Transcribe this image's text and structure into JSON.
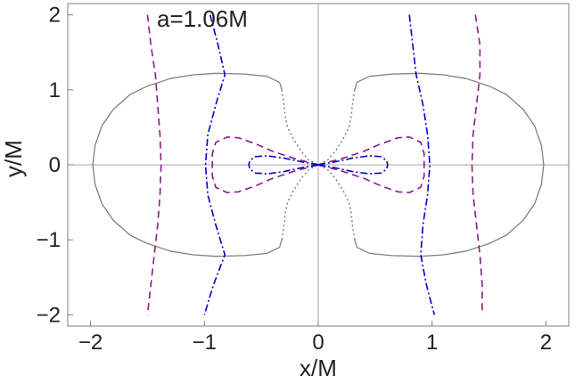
{
  "chart_data": {
    "type": "line",
    "title": "",
    "annotation": "a=1.06M",
    "xlabel": "x/M",
    "ylabel": "y/M",
    "xlim": [
      -2.2,
      2.2
    ],
    "ylim": [
      -2.15,
      2.15
    ],
    "xticks": [
      -2,
      -1,
      0,
      1,
      2
    ],
    "yticks": [
      -2,
      -1,
      0,
      1,
      2
    ],
    "xtick_labels": [
      "−2",
      "−1",
      "0",
      "1",
      "2"
    ],
    "ytick_labels": [
      "−2",
      "−1",
      "0",
      "1",
      "2"
    ],
    "origin_axes": true,
    "grid": false,
    "legend": "none",
    "series": [
      {
        "style": "solid",
        "color": "#808080",
        "points": [
          [
            0.32,
            1.0
          ],
          [
            0.34,
            1.1
          ],
          [
            0.45,
            1.18
          ],
          [
            0.65,
            1.21
          ],
          [
            0.9,
            1.22
          ],
          [
            1.1,
            1.2
          ],
          [
            1.3,
            1.15
          ],
          [
            1.5,
            1.05
          ],
          [
            1.65,
            0.94
          ],
          [
            1.8,
            0.74
          ],
          [
            1.9,
            0.52
          ],
          [
            1.96,
            0.26
          ],
          [
            1.98,
            0.0
          ],
          [
            1.96,
            -0.26
          ],
          [
            1.9,
            -0.52
          ],
          [
            1.8,
            -0.74
          ],
          [
            1.65,
            -0.94
          ],
          [
            1.5,
            -1.05
          ],
          [
            1.3,
            -1.15
          ],
          [
            1.1,
            -1.2
          ],
          [
            0.9,
            -1.22
          ],
          [
            0.65,
            -1.21
          ],
          [
            0.45,
            -1.18
          ],
          [
            0.34,
            -1.1
          ],
          [
            0.32,
            -1.0
          ]
        ]
      },
      {
        "style": "solid",
        "color": "#808080",
        "points": [
          [
            -0.32,
            1.0
          ],
          [
            -0.34,
            1.1
          ],
          [
            -0.45,
            1.18
          ],
          [
            -0.65,
            1.21
          ],
          [
            -0.9,
            1.22
          ],
          [
            -1.1,
            1.2
          ],
          [
            -1.3,
            1.15
          ],
          [
            -1.5,
            1.05
          ],
          [
            -1.65,
            0.94
          ],
          [
            -1.8,
            0.74
          ],
          [
            -1.9,
            0.52
          ],
          [
            -1.96,
            0.26
          ],
          [
            -1.98,
            0.0
          ],
          [
            -1.96,
            -0.26
          ],
          [
            -1.9,
            -0.52
          ],
          [
            -1.8,
            -0.74
          ],
          [
            -1.65,
            -0.94
          ],
          [
            -1.5,
            -1.05
          ],
          [
            -1.3,
            -1.15
          ],
          [
            -1.1,
            -1.2
          ],
          [
            -0.9,
            -1.22
          ],
          [
            -0.65,
            -1.21
          ],
          [
            -0.45,
            -1.18
          ],
          [
            -0.34,
            -1.1
          ],
          [
            -0.32,
            -1.0
          ]
        ]
      },
      {
        "style": "dotted",
        "color": "#808080",
        "points": [
          [
            0.32,
            1.0
          ],
          [
            0.3,
            0.8
          ],
          [
            0.29,
            0.65
          ],
          [
            0.27,
            0.5
          ],
          [
            0.22,
            0.35
          ],
          [
            0.15,
            0.18
          ],
          [
            0.08,
            0.06
          ],
          [
            0.0,
            0.0
          ],
          [
            -0.08,
            -0.06
          ],
          [
            -0.15,
            -0.18
          ],
          [
            -0.22,
            -0.35
          ],
          [
            -0.27,
            -0.5
          ],
          [
            -0.29,
            -0.65
          ],
          [
            -0.3,
            -0.8
          ],
          [
            -0.32,
            -1.0
          ]
        ]
      },
      {
        "style": "dotted",
        "color": "#808080",
        "points": [
          [
            -0.32,
            1.0
          ],
          [
            -0.3,
            0.8
          ],
          [
            -0.29,
            0.65
          ],
          [
            -0.27,
            0.5
          ],
          [
            -0.22,
            0.35
          ],
          [
            -0.15,
            0.18
          ],
          [
            -0.08,
            0.06
          ],
          [
            0.0,
            0.0
          ],
          [
            0.08,
            -0.06
          ],
          [
            0.15,
            -0.18
          ],
          [
            0.22,
            -0.35
          ],
          [
            0.27,
            -0.5
          ],
          [
            0.29,
            -0.65
          ],
          [
            0.3,
            -0.8
          ],
          [
            0.32,
            -1.0
          ]
        ]
      },
      {
        "style": "dashed",
        "color": "#8B1A8B",
        "points": [
          [
            1.38,
            2.0
          ],
          [
            1.42,
            1.6
          ],
          [
            1.42,
            1.2
          ],
          [
            1.39,
            0.8
          ],
          [
            1.36,
            0.4
          ],
          [
            1.35,
            0.0
          ],
          [
            1.36,
            -0.4
          ],
          [
            1.39,
            -0.8
          ],
          [
            1.42,
            -1.2
          ],
          [
            1.44,
            -1.6
          ],
          [
            1.44,
            -2.0
          ]
        ]
      },
      {
        "style": "dashed",
        "color": "#8B1A8B",
        "points": [
          [
            -1.5,
            2.0
          ],
          [
            -1.47,
            1.6
          ],
          [
            -1.43,
            1.2
          ],
          [
            -1.41,
            0.8
          ],
          [
            -1.39,
            0.4
          ],
          [
            -1.38,
            0.0
          ],
          [
            -1.39,
            -0.4
          ],
          [
            -1.41,
            -0.8
          ],
          [
            -1.44,
            -1.2
          ],
          [
            -1.47,
            -1.6
          ],
          [
            -1.5,
            -2.0
          ]
        ]
      },
      {
        "style": "dashed",
        "color": "#8B1A8B",
        "points": [
          [
            0.0,
            0.0
          ],
          [
            0.2,
            0.08
          ],
          [
            0.4,
            0.18
          ],
          [
            0.55,
            0.28
          ],
          [
            0.7,
            0.36
          ],
          [
            0.8,
            0.37
          ],
          [
            0.9,
            0.3
          ],
          [
            0.93,
            0.15
          ],
          [
            0.93,
            0.0
          ],
          [
            0.93,
            -0.15
          ],
          [
            0.9,
            -0.3
          ],
          [
            0.8,
            -0.37
          ],
          [
            0.7,
            -0.36
          ],
          [
            0.55,
            -0.28
          ],
          [
            0.4,
            -0.18
          ],
          [
            0.2,
            -0.08
          ],
          [
            0.0,
            0.0
          ]
        ]
      },
      {
        "style": "dashed",
        "color": "#8B1A8B",
        "points": [
          [
            0.0,
            0.0
          ],
          [
            -0.2,
            0.08
          ],
          [
            -0.4,
            0.18
          ],
          [
            -0.55,
            0.28
          ],
          [
            -0.7,
            0.36
          ],
          [
            -0.8,
            0.37
          ],
          [
            -0.9,
            0.3
          ],
          [
            -0.93,
            0.15
          ],
          [
            -0.93,
            0.0
          ],
          [
            -0.93,
            -0.15
          ],
          [
            -0.9,
            -0.3
          ],
          [
            -0.8,
            -0.37
          ],
          [
            -0.7,
            -0.36
          ],
          [
            -0.55,
            -0.28
          ],
          [
            -0.4,
            -0.18
          ],
          [
            -0.2,
            -0.08
          ],
          [
            0.0,
            0.0
          ]
        ]
      },
      {
        "style": "dashdot",
        "color": "#0000CC",
        "points": [
          [
            0.8,
            2.0
          ],
          [
            0.83,
            1.6
          ],
          [
            0.86,
            1.2
          ],
          [
            0.92,
            0.8
          ],
          [
            0.96,
            0.4
          ],
          [
            0.98,
            0.0
          ],
          [
            0.96,
            -0.4
          ],
          [
            0.92,
            -0.8
          ],
          [
            0.9,
            -1.2
          ],
          [
            0.95,
            -1.6
          ],
          [
            1.02,
            -2.0
          ]
        ]
      },
      {
        "style": "dashdot",
        "color": "#0000CC",
        "points": [
          [
            -0.95,
            2.0
          ],
          [
            -0.88,
            1.6
          ],
          [
            -0.82,
            1.2
          ],
          [
            -0.9,
            0.8
          ],
          [
            -0.97,
            0.4
          ],
          [
            -0.99,
            0.0
          ],
          [
            -0.97,
            -0.4
          ],
          [
            -0.9,
            -0.8
          ],
          [
            -0.82,
            -1.2
          ],
          [
            -0.92,
            -1.6
          ],
          [
            -1.0,
            -2.0
          ]
        ]
      },
      {
        "style": "dashdot",
        "color": "#0000CC",
        "points": [
          [
            0.0,
            0.0
          ],
          [
            0.15,
            0.04
          ],
          [
            0.3,
            0.09
          ],
          [
            0.45,
            0.12
          ],
          [
            0.55,
            0.11
          ],
          [
            0.6,
            0.06
          ],
          [
            0.61,
            0.0
          ],
          [
            0.6,
            -0.06
          ],
          [
            0.55,
            -0.11
          ],
          [
            0.45,
            -0.12
          ],
          [
            0.3,
            -0.09
          ],
          [
            0.15,
            -0.04
          ],
          [
            0.0,
            0.0
          ]
        ]
      },
      {
        "style": "dashdot",
        "color": "#0000CC",
        "points": [
          [
            0.0,
            0.0
          ],
          [
            -0.15,
            0.04
          ],
          [
            -0.3,
            0.09
          ],
          [
            -0.45,
            0.12
          ],
          [
            -0.55,
            0.11
          ],
          [
            -0.6,
            0.06
          ],
          [
            -0.61,
            0.0
          ],
          [
            -0.6,
            -0.06
          ],
          [
            -0.55,
            -0.11
          ],
          [
            -0.45,
            -0.12
          ],
          [
            -0.3,
            -0.09
          ],
          [
            -0.15,
            -0.04
          ],
          [
            0.0,
            0.0
          ]
        ]
      }
    ]
  }
}
